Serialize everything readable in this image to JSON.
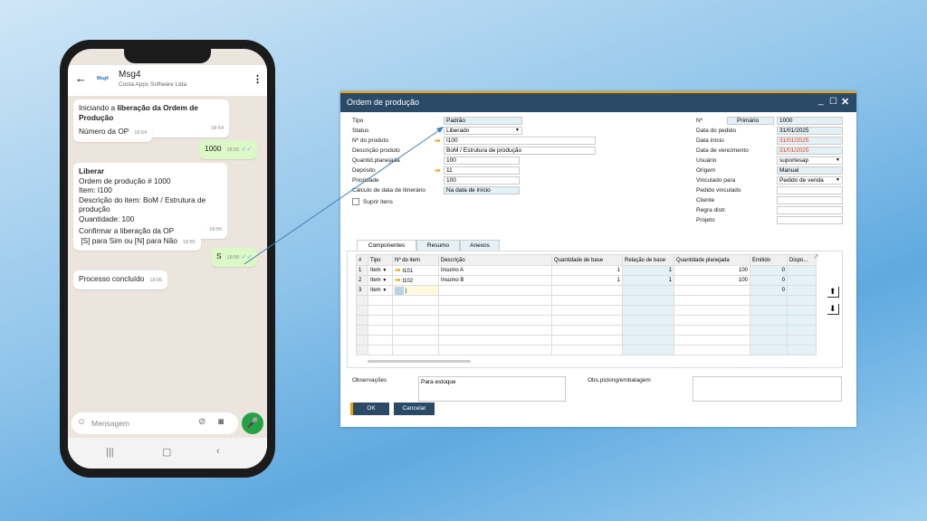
{
  "phone": {
    "chat_name": "Msg4",
    "chat_subtitle": "Costa Apps Software Ltda",
    "logo_text": "Msg4",
    "messages": [
      {
        "dir": "in",
        "text_pre": "Iniciando a ",
        "text_bold": "liberação da Ordem de Produção",
        "time": "18:54"
      },
      {
        "dir": "in",
        "text": "Número da OP",
        "time": "18:54"
      },
      {
        "dir": "out",
        "text": "1000",
        "time": "18:55"
      },
      {
        "dir": "in",
        "title": "Liberar",
        "lines": [
          "Ordem de produção # 1000",
          "Item: I100",
          "Descrição do item: BoM / Estrutura de produção",
          "Quantidade: 100"
        ],
        "time": "18:55"
      },
      {
        "dir": "in",
        "lines": [
          "Confirmar a liberação da OP",
          "[S] para Sim ou [N] para Não"
        ],
        "time": "18:55"
      },
      {
        "dir": "out",
        "text": "S",
        "time": "18:56"
      },
      {
        "dir": "in",
        "text": "Processo concluído",
        "time": "18:56"
      }
    ],
    "input_placeholder": "Mensagem"
  },
  "sap": {
    "title": "Ordem de produção",
    "left": {
      "tipo": {
        "label": "Tipo",
        "value": "Padrão"
      },
      "status": {
        "label": "Status",
        "value": "Liberado"
      },
      "produto": {
        "label": "Nº do produto",
        "value": "I100"
      },
      "descricao": {
        "label": "Descrição produto",
        "value": "BoM / Estrutura de produção"
      },
      "quantidade": {
        "label": "Quantid.planejada",
        "value": "100"
      },
      "deposito": {
        "label": "Depósito",
        "value": "11"
      },
      "prioridade": {
        "label": "Prioridade",
        "value": "100"
      },
      "calculo": {
        "label": "Cálculo de data de itinerário",
        "value": "Na data de início"
      },
      "suprir": {
        "label": "Suprir itens"
      }
    },
    "right": {
      "numero": {
        "label": "Nº",
        "series": "Primário",
        "value": "1000"
      },
      "data_pedido": {
        "label": "Data do pedido",
        "value": "31/01/2025"
      },
      "data_inicio": {
        "label": "Data início",
        "value": "31/01/2025"
      },
      "data_venc": {
        "label": "Data de vencimento",
        "value": "31/01/2025"
      },
      "usuario": {
        "label": "Usuário",
        "value": "suportesap"
      },
      "origem": {
        "label": "Origem",
        "value": "Manual"
      },
      "vinculado": {
        "label": "Vinculado para",
        "value": "Pedido de venda"
      },
      "pedido_vinc": {
        "label": "Pedido vinculado",
        "value": ""
      },
      "cliente": {
        "label": "Cliente",
        "value": ""
      },
      "regra": {
        "label": "Regra distr.",
        "value": ""
      },
      "projeto": {
        "label": "Projeto",
        "value": ""
      }
    },
    "tabs": [
      "Componentes",
      "Resumo",
      "Anexos"
    ],
    "columns": [
      "#",
      "Tipo",
      "Nº do item",
      "Descrição",
      "Quantidade de base",
      "Relação de base",
      "Quantidade planejada",
      "Emitido",
      "Dispo..."
    ],
    "rows": [
      [
        "1",
        "Item",
        "I101",
        "Insumo A",
        "1",
        "1",
        "100",
        "0",
        ""
      ],
      [
        "2",
        "Item",
        "I102",
        "Insumo B",
        "1",
        "1",
        "100",
        "0",
        ""
      ],
      [
        "3",
        "Item",
        "",
        "",
        "",
        "",
        "",
        "0",
        ""
      ]
    ],
    "observacoes": {
      "label": "Observações",
      "value": "Para estoque"
    },
    "obs_picking": {
      "label": "Obs.picking/embalagem",
      "value": ""
    },
    "buttons": {
      "ok": "OK",
      "cancel": "Cancelar"
    }
  }
}
